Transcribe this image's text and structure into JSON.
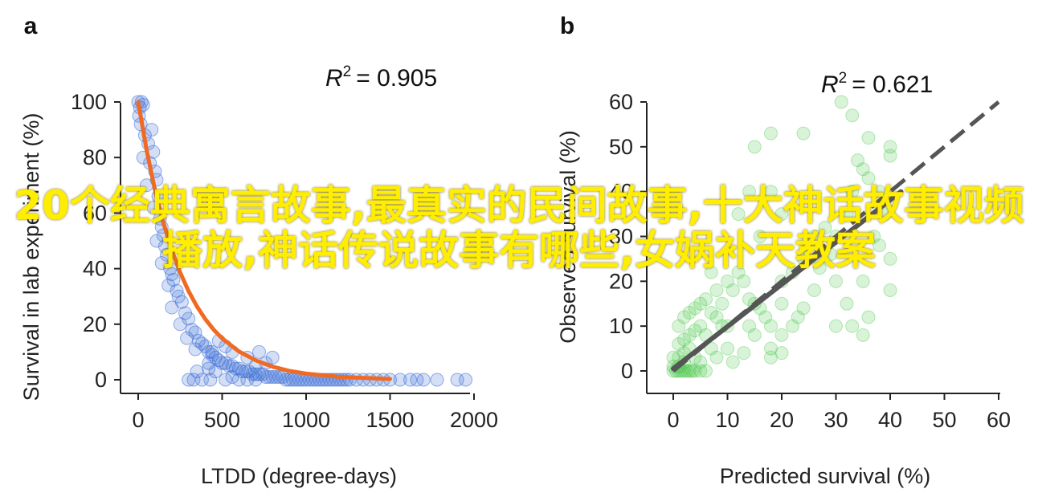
{
  "charts": [
    {
      "panel_label": "a",
      "r2_text": "= 0.905",
      "chart_data": {
        "type": "scatter",
        "xlabel": "LTDD (degree-days)",
        "ylabel": "Survival in lab experiment (%)",
        "xlim": [
          0,
          2000
        ],
        "ylim": [
          0,
          100
        ],
        "xticks": [
          0,
          500,
          1000,
          1500,
          2000
        ],
        "yticks": [
          0,
          20,
          40,
          60,
          80,
          100
        ],
        "r_squared": 0.905,
        "point_color": "#3d6fd6",
        "fit_color": "#f06a23",
        "points": [
          [
            0,
            100
          ],
          [
            10,
            98
          ],
          [
            20,
            100
          ],
          [
            30,
            99
          ],
          [
            5,
            95
          ],
          [
            15,
            92
          ],
          [
            40,
            88
          ],
          [
            60,
            85
          ],
          [
            80,
            90
          ],
          [
            90,
            82
          ],
          [
            30,
            80
          ],
          [
            70,
            78
          ],
          [
            100,
            75
          ],
          [
            110,
            72
          ],
          [
            50,
            70
          ],
          [
            120,
            66
          ],
          [
            90,
            62
          ],
          [
            130,
            58
          ],
          [
            140,
            55
          ],
          [
            150,
            52
          ],
          [
            110,
            50
          ],
          [
            160,
            48
          ],
          [
            170,
            45
          ],
          [
            140,
            42
          ],
          [
            190,
            40
          ],
          [
            200,
            38
          ],
          [
            210,
            36
          ],
          [
            180,
            34
          ],
          [
            230,
            32
          ],
          [
            240,
            30
          ],
          [
            260,
            28
          ],
          [
            200,
            26
          ],
          [
            280,
            24
          ],
          [
            300,
            22
          ],
          [
            250,
            20
          ],
          [
            320,
            18
          ],
          [
            340,
            17
          ],
          [
            290,
            15
          ],
          [
            360,
            14
          ],
          [
            380,
            13
          ],
          [
            400,
            12
          ],
          [
            340,
            11
          ],
          [
            420,
            10
          ],
          [
            440,
            9
          ],
          [
            460,
            8
          ],
          [
            480,
            7
          ],
          [
            500,
            6
          ],
          [
            520,
            6
          ],
          [
            540,
            5
          ],
          [
            560,
            5
          ],
          [
            580,
            4
          ],
          [
            600,
            4
          ],
          [
            620,
            3
          ],
          [
            640,
            3
          ],
          [
            660,
            3
          ],
          [
            680,
            2
          ],
          [
            700,
            2
          ],
          [
            720,
            2
          ],
          [
            740,
            2
          ],
          [
            760,
            1
          ],
          [
            780,
            1
          ],
          [
            800,
            1
          ],
          [
            820,
            1
          ],
          [
            840,
            1
          ],
          [
            860,
            1
          ],
          [
            880,
            0
          ],
          [
            900,
            0
          ],
          [
            920,
            0
          ],
          [
            940,
            0
          ],
          [
            960,
            0
          ],
          [
            980,
            0
          ],
          [
            1000,
            0
          ],
          [
            1020,
            0
          ],
          [
            1040,
            0
          ],
          [
            1060,
            0
          ],
          [
            1080,
            0
          ],
          [
            1100,
            0
          ],
          [
            1120,
            0
          ],
          [
            1140,
            0
          ],
          [
            1160,
            0
          ],
          [
            1180,
            0
          ],
          [
            1200,
            0
          ],
          [
            1220,
            0
          ],
          [
            1240,
            0
          ],
          [
            1260,
            0
          ],
          [
            1300,
            0
          ],
          [
            1340,
            0
          ],
          [
            1380,
            0
          ],
          [
            1420,
            0
          ],
          [
            1460,
            0
          ],
          [
            1500,
            0
          ],
          [
            1560,
            0
          ],
          [
            1620,
            0
          ],
          [
            1660,
            0
          ],
          [
            1700,
            0
          ],
          [
            1780,
            0
          ],
          [
            1900,
            0
          ],
          [
            1950,
            0
          ],
          [
            420,
            4
          ],
          [
            460,
            3
          ],
          [
            350,
            3
          ],
          [
            380,
            0
          ],
          [
            330,
            0
          ],
          [
            300,
            0
          ],
          [
            520,
            0
          ],
          [
            560,
            1
          ],
          [
            600,
            0
          ],
          [
            650,
            0
          ],
          [
            700,
            0
          ],
          [
            430,
            0
          ],
          [
            700,
            5
          ],
          [
            650,
            8
          ],
          [
            720,
            10
          ],
          [
            760,
            6
          ],
          [
            800,
            8
          ],
          [
            560,
            10
          ],
          [
            520,
            12
          ],
          [
            480,
            14
          ],
          [
            440,
            10
          ],
          [
            420,
            6
          ]
        ],
        "fit_line": {
          "x": [
            0,
            50,
            100,
            150,
            200,
            250,
            300,
            350,
            400,
            450,
            500,
            600,
            700,
            800,
            900,
            1000,
            1200,
            1500
          ],
          "y": [
            100,
            82.7,
            68.3,
            56.5,
            46.7,
            38.6,
            31.9,
            26.4,
            21.8,
            18.0,
            14.9,
            10.2,
            7.0,
            4.7,
            3.2,
            2.2,
            1.0,
            0.3
          ]
        }
      }
    },
    {
      "panel_label": "b",
      "r2_text": "= 0.621",
      "chart_data": {
        "type": "scatter",
        "xlabel": "Predicted survival (%)",
        "ylabel": "Observed survival (%)",
        "xlim": [
          0,
          60
        ],
        "ylim": [
          0,
          60
        ],
        "xticks": [
          0,
          10,
          20,
          30,
          40,
          50,
          60
        ],
        "yticks": [
          0,
          10,
          20,
          30,
          40,
          50,
          60
        ],
        "r_squared": 0.621,
        "point_color": "#3cc23c",
        "fit_color": "#555555",
        "points": [
          [
            0,
            0
          ],
          [
            0.5,
            0
          ],
          [
            1,
            0
          ],
          [
            1.5,
            0
          ],
          [
            2,
            0
          ],
          [
            2.5,
            0
          ],
          [
            3,
            0
          ],
          [
            3.5,
            0
          ],
          [
            4,
            0
          ],
          [
            5,
            0
          ],
          [
            6,
            0
          ],
          [
            0,
            1
          ],
          [
            1,
            1
          ],
          [
            2,
            2
          ],
          [
            0,
            3
          ],
          [
            1,
            3
          ],
          [
            2,
            4
          ],
          [
            3,
            5
          ],
          [
            4,
            3
          ],
          [
            5,
            2
          ],
          [
            1,
            6
          ],
          [
            2,
            7
          ],
          [
            3,
            8
          ],
          [
            4,
            9
          ],
          [
            5,
            10
          ],
          [
            1,
            10
          ],
          [
            2,
            12
          ],
          [
            3,
            13
          ],
          [
            4,
            14
          ],
          [
            5,
            15
          ],
          [
            6,
            16
          ],
          [
            7,
            13
          ],
          [
            8,
            12
          ],
          [
            9,
            10
          ],
          [
            10,
            10
          ],
          [
            8,
            18
          ],
          [
            10,
            20
          ],
          [
            12,
            22
          ],
          [
            13,
            20
          ],
          [
            14,
            16
          ],
          [
            15,
            15
          ],
          [
            16,
            14
          ],
          [
            17,
            12
          ],
          [
            18,
            10
          ],
          [
            14,
            10
          ],
          [
            15,
            8
          ],
          [
            18,
            5
          ],
          [
            10,
            5
          ],
          [
            20,
            15
          ],
          [
            20,
            20
          ],
          [
            22,
            22
          ],
          [
            24,
            25
          ],
          [
            25,
            28
          ],
          [
            26,
            30
          ],
          [
            28,
            32
          ],
          [
            30,
            30
          ],
          [
            32,
            35
          ],
          [
            33,
            40
          ],
          [
            35,
            45
          ],
          [
            34,
            47
          ],
          [
            36,
            43
          ],
          [
            38,
            40
          ],
          [
            40,
            50
          ],
          [
            40,
            48
          ],
          [
            36,
            52
          ],
          [
            33,
            57
          ],
          [
            31,
            60
          ],
          [
            24,
            53
          ],
          [
            18,
            53
          ],
          [
            15,
            50
          ],
          [
            14,
            40
          ],
          [
            18,
            40
          ],
          [
            16,
            30
          ],
          [
            20,
            35
          ],
          [
            12,
            35
          ],
          [
            30,
            20
          ],
          [
            32,
            15
          ],
          [
            33,
            10
          ],
          [
            36,
            12
          ],
          [
            35,
            20
          ],
          [
            40,
            25
          ],
          [
            40,
            18
          ],
          [
            38,
            28
          ],
          [
            30,
            10
          ],
          [
            35,
            8
          ],
          [
            37,
            30
          ],
          [
            39,
            35
          ],
          [
            29,
            26
          ],
          [
            27,
            23
          ],
          [
            26,
            18
          ],
          [
            24,
            14
          ],
          [
            23,
            12
          ],
          [
            22,
            10
          ],
          [
            20,
            8
          ],
          [
            20,
            4
          ],
          [
            18,
            3
          ],
          [
            8,
            3
          ],
          [
            7,
            5
          ],
          [
            6,
            8
          ],
          [
            11,
            2
          ],
          [
            13,
            4
          ],
          [
            9,
            15
          ],
          [
            11,
            18
          ],
          [
            7,
            22
          ]
        ],
        "fit_line": {
          "x": [
            0,
            42
          ],
          "y": [
            0.5,
            40
          ]
        },
        "dashed_line": {
          "x": [
            0,
            60
          ],
          "y": [
            0,
            60
          ]
        }
      }
    }
  ],
  "overlay_text": "20个经典寓言故事,最真实的民间故事,十大神话故事视频播放,神话传说故事有哪些,女娲补天教案"
}
